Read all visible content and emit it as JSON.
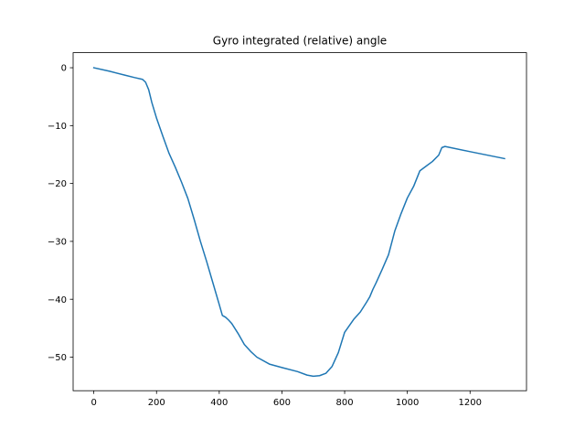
{
  "chart_data": {
    "type": "line",
    "title": "Gyro integrated (relative) angle",
    "xlabel": "",
    "ylabel": "",
    "xlim": [
      -66,
      1380
    ],
    "ylim": [
      -55.8,
      2.6
    ],
    "xticks": [
      0,
      200,
      400,
      600,
      800,
      1000,
      1200
    ],
    "yticks": [
      0,
      -10,
      -20,
      -30,
      -40,
      -50
    ],
    "ytick_labels": [
      "0",
      "−10",
      "−20",
      "−30",
      "−40",
      "−50"
    ],
    "grid": false,
    "legend": "none",
    "line_color": "#1f77b4",
    "series": [
      {
        "x": [
          0,
          50,
          100,
          130,
          155,
          165,
          175,
          185,
          200,
          220,
          240,
          260,
          280,
          300,
          320,
          340,
          360,
          380,
          400,
          410,
          420,
          430,
          440,
          460,
          480,
          500,
          520,
          560,
          600,
          650,
          680,
          700,
          720,
          740,
          760,
          780,
          800,
          830,
          850,
          870,
          880,
          890,
          900,
          920,
          940,
          960,
          980,
          1000,
          1020,
          1040,
          1060,
          1080,
          1100,
          1110,
          1120,
          1200,
          1310
        ],
        "y": [
          0,
          -0.6,
          -1.3,
          -1.7,
          -2.0,
          -2.5,
          -3.8,
          -6.0,
          -8.7,
          -11.8,
          -14.8,
          -17.2,
          -19.8,
          -22.6,
          -26.2,
          -30.0,
          -33.5,
          -37.2,
          -40.9,
          -42.8,
          -43.1,
          -43.6,
          -44.2,
          -45.9,
          -47.8,
          -49.0,
          -50.0,
          -51.2,
          -51.8,
          -52.5,
          -53.1,
          -53.3,
          -53.2,
          -52.8,
          -51.6,
          -49.2,
          -45.7,
          -43.4,
          -42.2,
          -40.5,
          -39.6,
          -38.3,
          -37.2,
          -34.8,
          -32.3,
          -28.2,
          -25.2,
          -22.5,
          -20.5,
          -17.8,
          -17.0,
          -16.2,
          -15.1,
          -13.8,
          -13.6,
          -14.5,
          -15.7
        ]
      }
    ]
  }
}
